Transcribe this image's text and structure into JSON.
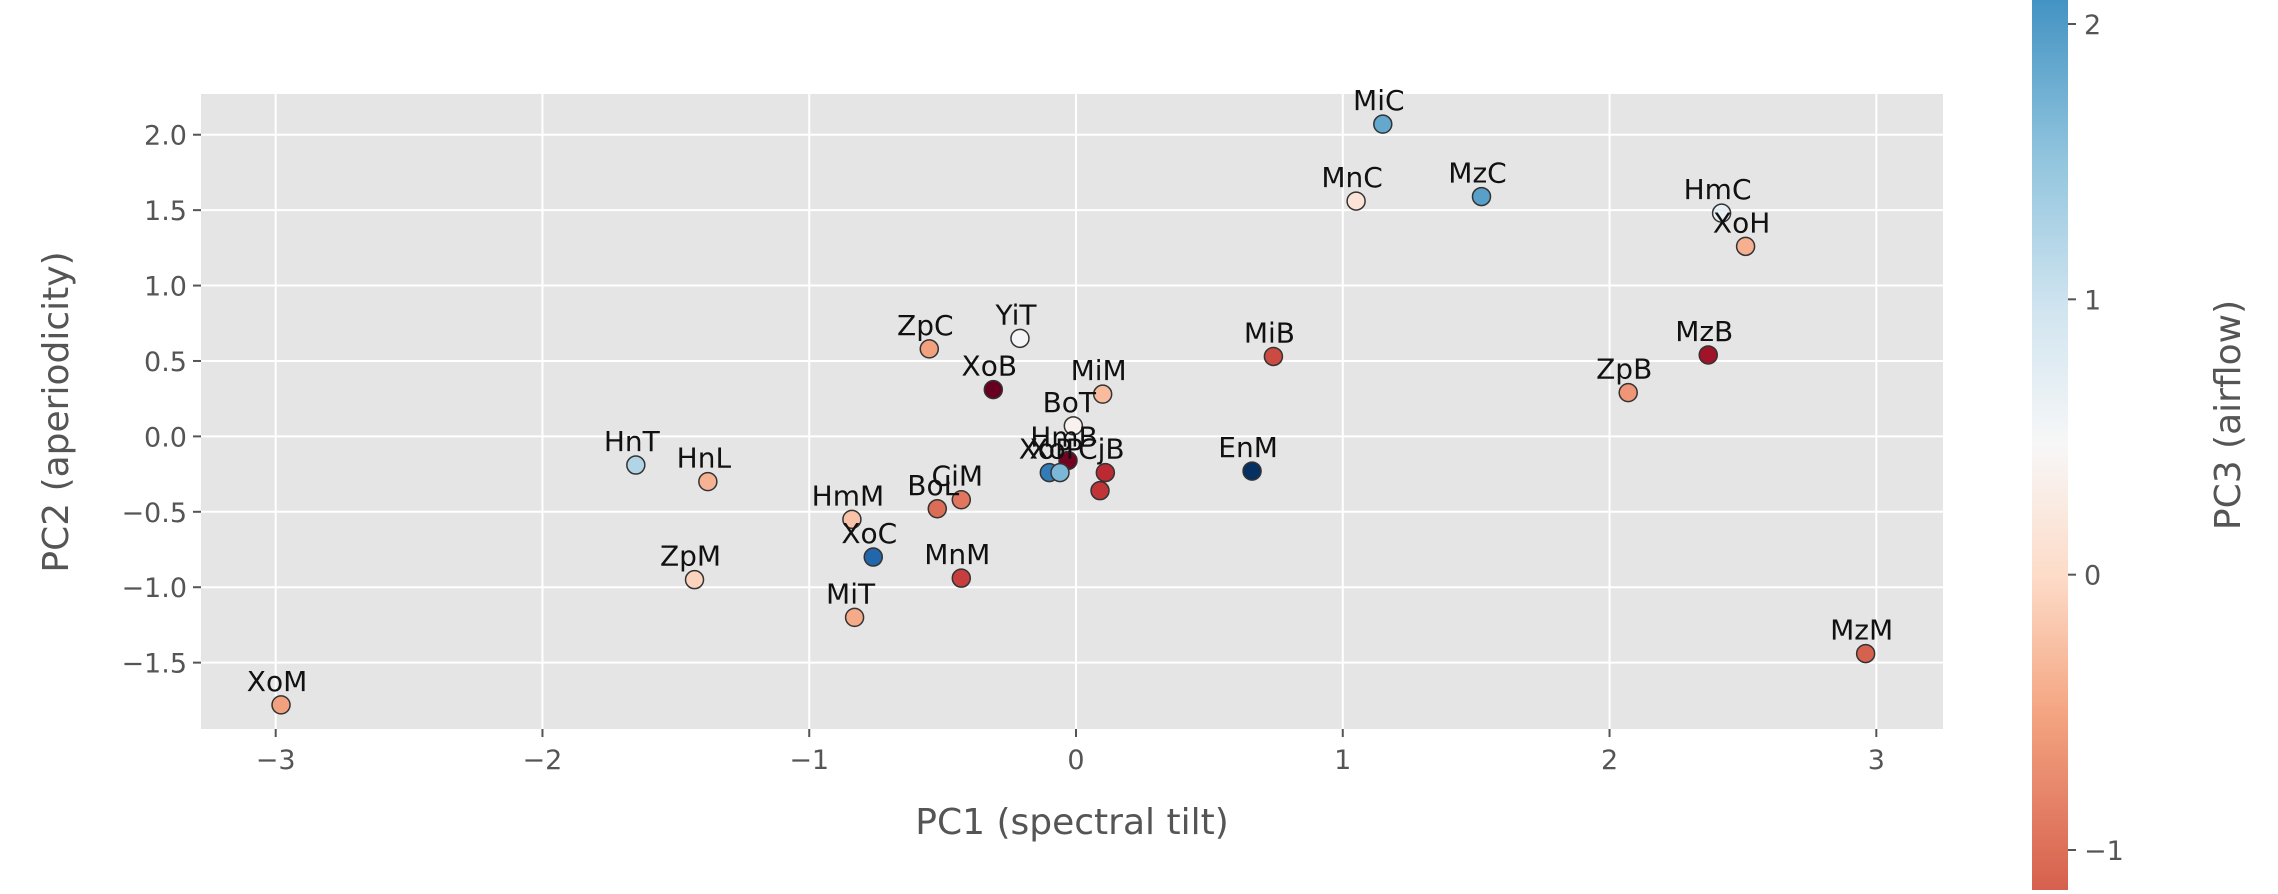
{
  "chart_data": {
    "type": "scatter",
    "title": "",
    "xlabel": "PC1 (spectral tilt)",
    "ylabel": "PC2 (aperiodicity)",
    "xlim": [
      -3.28,
      3.25
    ],
    "ylim": [
      -1.94,
      2.27
    ],
    "xticks": [
      -3,
      -2,
      -1,
      0,
      1,
      2,
      3
    ],
    "xtick_labels": [
      "−3",
      "−2",
      "−1",
      "0",
      "1",
      "2",
      "3"
    ],
    "yticks": [
      -1.5,
      -1.0,
      -0.5,
      0.0,
      0.5,
      1.0,
      1.5,
      2.0
    ],
    "ytick_labels": [
      "−1.5",
      "−1.0",
      "−0.5",
      "0.0",
      "0.5",
      "1.0",
      "1.5",
      "2.0"
    ],
    "grid": true,
    "background": "#e5e5e5",
    "colorbar": {
      "label": "PC3 (airflow)",
      "colormap": "RdBu",
      "range": [
        -1.15,
        2.08
      ],
      "ticks": [
        -1,
        0,
        1,
        2
      ],
      "tick_labels": [
        "−1",
        "0",
        "1",
        "2"
      ]
    },
    "points": [
      {
        "label": "MiC",
        "x": 1.15,
        "y": 2.07,
        "c": 1.3
      },
      {
        "label": "MnC",
        "x": 1.05,
        "y": 1.56,
        "c": 0.25
      },
      {
        "label": "MzC",
        "x": 1.52,
        "y": 1.59,
        "c": 1.35
      },
      {
        "label": "HmC",
        "x": 2.42,
        "y": 1.48,
        "c": 0.6
      },
      {
        "label": "XoH",
        "x": 2.51,
        "y": 1.26,
        "c": -0.12
      },
      {
        "label": "MzB",
        "x": 2.37,
        "y": 0.54,
        "c": -0.9
      },
      {
        "label": "ZpB",
        "x": 2.07,
        "y": 0.29,
        "c": -0.25
      },
      {
        "label": "MzM",
        "x": 2.96,
        "y": -1.44,
        "c": -0.5
      },
      {
        "label": "MiB",
        "x": 0.74,
        "y": 0.53,
        "c": -0.6
      },
      {
        "label": "EnM",
        "x": 0.66,
        "y": -0.23,
        "c": 2.08
      },
      {
        "label": "ZpC",
        "x": -0.55,
        "y": 0.58,
        "c": -0.2
      },
      {
        "label": "YiT",
        "x": -0.21,
        "y": 0.65,
        "c": 0.5
      },
      {
        "label": "XoB",
        "x": -0.31,
        "y": 0.31,
        "c": -1.15
      },
      {
        "label": "MiM",
        "x": 0.1,
        "y": 0.28,
        "c": -0.05
      },
      {
        "label": "BoT",
        "x": -0.01,
        "y": 0.07,
        "c": 0.4
      },
      {
        "label": "HmB",
        "x": -0.03,
        "y": -0.16,
        "c": -1.1
      },
      {
        "label": "XoP",
        "x": -0.1,
        "y": -0.24,
        "c": 1.6
      },
      {
        "label": "XoP",
        "x": -0.06,
        "y": -0.24,
        "c": 1.2
      },
      {
        "label": "CjB",
        "x": 0.11,
        "y": -0.24,
        "c": -0.75
      },
      {
        "label": "",
        "x": 0.09,
        "y": -0.36,
        "c": -0.7
      },
      {
        "label": "HnT",
        "x": -1.65,
        "y": -0.19,
        "c": 0.95
      },
      {
        "label": "HnL",
        "x": -1.38,
        "y": -0.3,
        "c": -0.1
      },
      {
        "label": "CiM",
        "x": -0.43,
        "y": -0.42,
        "c": -0.4
      },
      {
        "label": "BoL",
        "x": -0.52,
        "y": -0.48,
        "c": -0.45
      },
      {
        "label": "HmM",
        "x": -0.84,
        "y": -0.55,
        "c": 0.0
      },
      {
        "label": "XoC",
        "x": -0.76,
        "y": -0.8,
        "c": 1.75
      },
      {
        "label": "ZpM",
        "x": -1.43,
        "y": -0.95,
        "c": 0.1
      },
      {
        "label": "MnM",
        "x": -0.43,
        "y": -0.94,
        "c": -0.65
      },
      {
        "label": "MiT",
        "x": -0.83,
        "y": -1.2,
        "c": -0.15
      },
      {
        "label": "XoM",
        "x": -2.98,
        "y": -1.78,
        "c": -0.2
      }
    ]
  }
}
